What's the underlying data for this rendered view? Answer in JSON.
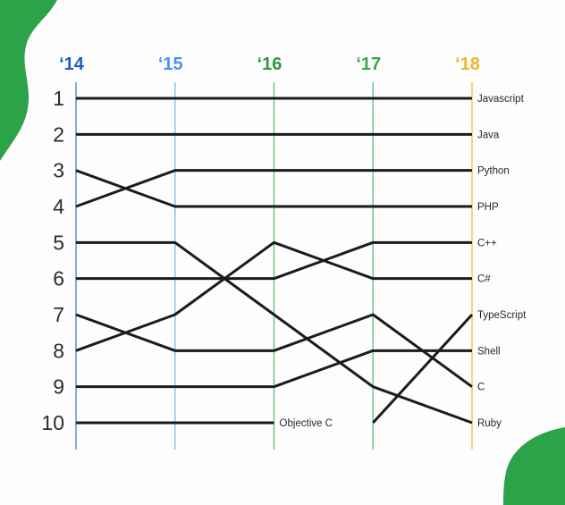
{
  "theme": {
    "brand_green": "#2ca348",
    "background": "#fdfdfd",
    "line_color": "#1b1b1f",
    "rank_label_color": "#2b2b30",
    "series_label_color": "#24292f"
  },
  "chart_data": {
    "type": "line",
    "subtype": "bump-ranking-chart",
    "title": "",
    "xlabel": "",
    "ylabel": "",
    "categories": [
      "‘14",
      "‘15",
      "‘16",
      "‘17",
      "‘18"
    ],
    "category_colors": [
      "#1c5fc4",
      "#4a92f0",
      "#2e9747",
      "#33a94f",
      "#f0b429"
    ],
    "axis_line_colors": [
      "#5b8ede",
      "#8dc0f7",
      "#79c489",
      "#70c683",
      "#f8ca45"
    ],
    "rank_ticks": [
      "1",
      "2",
      "3",
      "4",
      "5",
      "6",
      "7",
      "8",
      "9",
      "10"
    ],
    "ylim": [
      1,
      10
    ],
    "grid": "vertical-year-lines-only",
    "legend": "end-of-line-labels",
    "series": [
      {
        "name": "Javascript",
        "ranks": [
          1,
          1,
          1,
          1,
          1
        ]
      },
      {
        "name": "Java",
        "ranks": [
          2,
          2,
          2,
          2,
          2
        ]
      },
      {
        "name": "Python",
        "ranks": [
          4,
          3,
          3,
          3,
          3
        ]
      },
      {
        "name": "PHP",
        "ranks": [
          3,
          4,
          4,
          4,
          4
        ]
      },
      {
        "name": "C++",
        "ranks": [
          6,
          6,
          6,
          5,
          5
        ]
      },
      {
        "name": "C#",
        "ranks": [
          8,
          7,
          5,
          6,
          6
        ]
      },
      {
        "name": "TypeScript",
        "ranks": [
          null,
          null,
          null,
          10,
          7
        ]
      },
      {
        "name": "Shell",
        "ranks": [
          9,
          9,
          9,
          8,
          8
        ]
      },
      {
        "name": "C",
        "ranks": [
          7,
          8,
          8,
          7,
          9
        ]
      },
      {
        "name": "Ruby",
        "ranks": [
          5,
          5,
          7,
          9,
          10
        ]
      },
      {
        "name": "Objective C",
        "ranks": [
          10,
          10,
          10,
          null,
          null
        ]
      }
    ]
  }
}
